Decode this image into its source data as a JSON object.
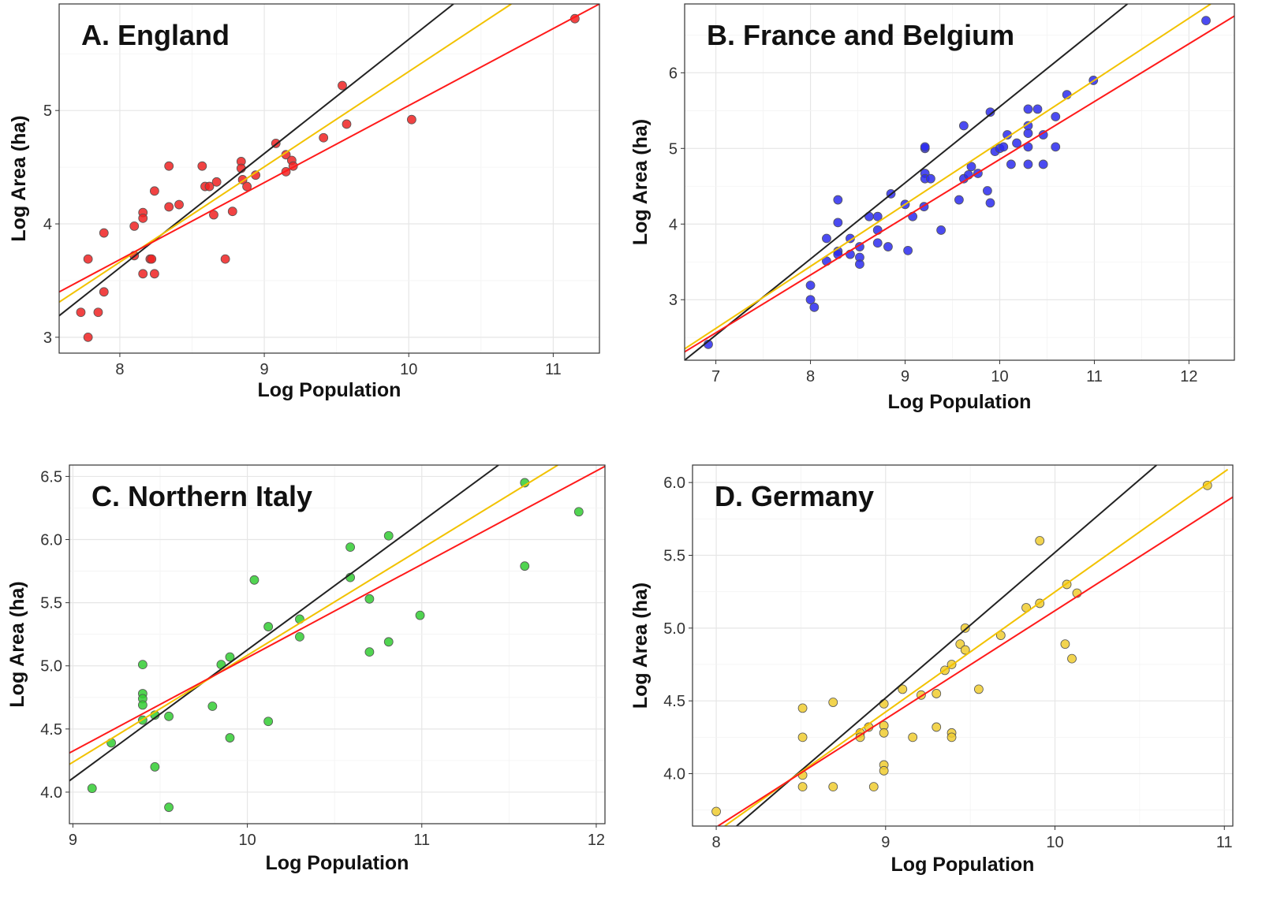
{
  "chart_data": [
    {
      "type": "scatter",
      "title": "A.  England",
      "xlabel": "Log Population",
      "ylabel": "Log Area (ha)",
      "xlim": [
        7.58,
        11.32
      ],
      "ylim": [
        2.86,
        5.94
      ],
      "xticks": [
        8,
        9,
        10,
        11
      ],
      "xtick_labels": [
        "8",
        "9",
        "10",
        "11"
      ],
      "yticks": [
        3,
        4,
        5
      ],
      "ytick_labels": [
        "3",
        "4",
        "5"
      ],
      "grid": true,
      "point_color": "#ee2222",
      "points": [
        [
          7.73,
          3.22
        ],
        [
          7.78,
          3.0
        ],
        [
          7.78,
          3.69
        ],
        [
          7.85,
          3.22
        ],
        [
          7.89,
          3.4
        ],
        [
          7.89,
          3.92
        ],
        [
          8.1,
          3.98
        ],
        [
          8.1,
          3.72
        ],
        [
          8.16,
          4.1
        ],
        [
          8.16,
          4.05
        ],
        [
          8.16,
          3.56
        ],
        [
          8.21,
          3.69
        ],
        [
          8.22,
          3.69
        ],
        [
          8.24,
          3.56
        ],
        [
          8.24,
          4.29
        ],
        [
          8.34,
          4.15
        ],
        [
          8.34,
          4.51
        ],
        [
          8.41,
          4.17
        ],
        [
          8.57,
          4.51
        ],
        [
          8.59,
          4.33
        ],
        [
          8.62,
          4.33
        ],
        [
          8.67,
          4.37
        ],
        [
          8.65,
          4.08
        ],
        [
          8.73,
          3.69
        ],
        [
          8.78,
          4.11
        ],
        [
          8.84,
          4.55
        ],
        [
          8.84,
          4.49
        ],
        [
          8.85,
          4.39
        ],
        [
          8.88,
          4.33
        ],
        [
          8.94,
          4.43
        ],
        [
          9.08,
          4.71
        ],
        [
          9.15,
          4.61
        ],
        [
          9.15,
          4.46
        ],
        [
          9.19,
          4.56
        ],
        [
          9.2,
          4.51
        ],
        [
          9.41,
          4.76
        ],
        [
          9.54,
          5.22
        ],
        [
          9.57,
          4.88
        ],
        [
          10.02,
          4.92
        ],
        [
          11.15,
          5.81
        ]
      ],
      "lines": [
        {
          "color": "#222222",
          "x": [
            7.58,
            10.31
          ],
          "y": [
            3.19,
            5.94
          ]
        },
        {
          "color": "#f2c200",
          "x": [
            7.58,
            10.71
          ],
          "y": [
            3.31,
            5.94
          ]
        },
        {
          "color": "#ff1a1a",
          "x": [
            7.58,
            11.32
          ],
          "y": [
            3.4,
            5.94
          ]
        }
      ]
    },
    {
      "type": "scatter",
      "title": "B.  France and Belgium",
      "xlabel": "Log Population",
      "ylabel": "Log Area (ha)",
      "xlim": [
        6.67,
        12.48
      ],
      "ylim": [
        2.2,
        6.91
      ],
      "xticks": [
        7,
        8,
        9,
        10,
        11,
        12
      ],
      "xtick_labels": [
        "7",
        "8",
        "9",
        "10",
        "11",
        "12"
      ],
      "yticks": [
        3,
        4,
        5,
        6
      ],
      "ytick_labels": [
        "3",
        "4",
        "5",
        "6"
      ],
      "grid": true,
      "point_color": "#2b2bee",
      "points": [
        [
          6.92,
          2.41
        ],
        [
          8.0,
          3.19
        ],
        [
          8.0,
          3.0
        ],
        [
          8.04,
          2.9
        ],
        [
          8.17,
          3.81
        ],
        [
          8.17,
          3.51
        ],
        [
          8.29,
          4.32
        ],
        [
          8.29,
          4.02
        ],
        [
          8.29,
          3.64
        ],
        [
          8.29,
          3.6
        ],
        [
          8.42,
          3.81
        ],
        [
          8.42,
          3.6
        ],
        [
          8.52,
          3.7
        ],
        [
          8.52,
          3.56
        ],
        [
          8.52,
          3.47
        ],
        [
          8.62,
          4.1
        ],
        [
          8.71,
          4.1
        ],
        [
          8.71,
          3.92
        ],
        [
          8.71,
          3.75
        ],
        [
          8.82,
          3.7
        ],
        [
          8.85,
          4.4
        ],
        [
          9.0,
          4.26
        ],
        [
          9.03,
          3.65
        ],
        [
          9.08,
          4.1
        ],
        [
          9.2,
          4.23
        ],
        [
          9.21,
          5.0
        ],
        [
          9.21,
          5.02
        ],
        [
          9.21,
          4.67
        ],
        [
          9.21,
          4.6
        ],
        [
          9.27,
          4.6
        ],
        [
          9.38,
          3.92
        ],
        [
          9.57,
          4.32
        ],
        [
          9.62,
          5.3
        ],
        [
          9.62,
          4.6
        ],
        [
          9.67,
          4.65
        ],
        [
          9.7,
          4.76
        ],
        [
          9.77,
          4.67
        ],
        [
          9.87,
          4.44
        ],
        [
          9.9,
          5.48
        ],
        [
          9.9,
          4.28
        ],
        [
          9.95,
          4.96
        ],
        [
          10.0,
          5.0
        ],
        [
          10.04,
          5.02
        ],
        [
          10.08,
          5.18
        ],
        [
          10.12,
          4.79
        ],
        [
          10.18,
          5.07
        ],
        [
          10.3,
          5.52
        ],
        [
          10.3,
          5.3
        ],
        [
          10.3,
          5.2
        ],
        [
          10.3,
          5.02
        ],
        [
          10.3,
          4.79
        ],
        [
          10.4,
          5.52
        ],
        [
          10.46,
          5.18
        ],
        [
          10.46,
          4.79
        ],
        [
          10.59,
          5.42
        ],
        [
          10.59,
          5.02
        ],
        [
          10.71,
          5.71
        ],
        [
          10.99,
          5.9
        ],
        [
          12.18,
          6.69
        ]
      ],
      "lines": [
        {
          "color": "#222222",
          "x": [
            6.67,
            11.35
          ],
          "y": [
            2.2,
            6.91
          ]
        },
        {
          "color": "#f2c200",
          "x": [
            6.67,
            12.23
          ],
          "y": [
            2.35,
            6.91
          ]
        },
        {
          "color": "#ff1a1a",
          "x": [
            6.67,
            12.48
          ],
          "y": [
            2.31,
            6.75
          ]
        }
      ]
    },
    {
      "type": "scatter",
      "title": "C.  Northern Italy",
      "xlabel": "Log Population",
      "ylabel": "Log Area (ha)",
      "xlim": [
        8.98,
        12.05
      ],
      "ylim": [
        3.75,
        6.59
      ],
      "xticks": [
        9,
        10,
        11,
        12
      ],
      "xtick_labels": [
        "9",
        "10",
        "11",
        "12"
      ],
      "yticks": [
        4.0,
        4.5,
        5.0,
        5.5,
        6.0,
        6.5
      ],
      "ytick_labels": [
        "4.0",
        "4.5",
        "5.0",
        "5.5",
        "6.0",
        "6.5"
      ],
      "grid": true,
      "point_color": "#33cc33",
      "points": [
        [
          9.11,
          4.03
        ],
        [
          9.22,
          4.39
        ],
        [
          9.4,
          5.01
        ],
        [
          9.4,
          4.78
        ],
        [
          9.4,
          4.74
        ],
        [
          9.4,
          4.69
        ],
        [
          9.4,
          4.57
        ],
        [
          9.47,
          4.61
        ],
        [
          9.47,
          4.2
        ],
        [
          9.55,
          4.6
        ],
        [
          9.55,
          3.88
        ],
        [
          9.8,
          4.68
        ],
        [
          9.85,
          5.01
        ],
        [
          9.9,
          5.07
        ],
        [
          9.9,
          4.43
        ],
        [
          10.04,
          5.68
        ],
        [
          10.12,
          5.31
        ],
        [
          10.12,
          4.56
        ],
        [
          10.3,
          5.37
        ],
        [
          10.3,
          5.23
        ],
        [
          10.59,
          5.94
        ],
        [
          10.59,
          5.7
        ],
        [
          10.7,
          5.53
        ],
        [
          10.7,
          5.11
        ],
        [
          10.81,
          6.03
        ],
        [
          10.81,
          5.19
        ],
        [
          10.99,
          5.4
        ],
        [
          11.59,
          6.45
        ],
        [
          11.59,
          5.79
        ],
        [
          11.9,
          6.22
        ]
      ],
      "lines": [
        {
          "color": "#222222",
          "x": [
            8.98,
            11.44
          ],
          "y": [
            4.09,
            6.59
          ]
        },
        {
          "color": "#f2c200",
          "x": [
            8.98,
            11.78
          ],
          "y": [
            4.22,
            6.59
          ]
        },
        {
          "color": "#ff1a1a",
          "x": [
            8.98,
            12.05
          ],
          "y": [
            4.31,
            6.58
          ]
        }
      ]
    },
    {
      "type": "scatter",
      "title": "D.  Germany",
      "xlabel": "Log Population",
      "ylabel": "Log Area (ha)",
      "xlim": [
        7.86,
        11.05
      ],
      "ylim": [
        3.64,
        6.12
      ],
      "xticks": [
        8,
        9,
        10,
        11
      ],
      "xtick_labels": [
        "8",
        "9",
        "10",
        "11"
      ],
      "yticks": [
        4.0,
        4.5,
        5.0,
        5.5,
        6.0
      ],
      "ytick_labels": [
        "4.0",
        "4.5",
        "5.0",
        "5.5",
        "6.0"
      ],
      "grid": true,
      "point_color": "#f0cc30",
      "points": [
        [
          8.0,
          3.74
        ],
        [
          8.51,
          4.45
        ],
        [
          8.51,
          4.25
        ],
        [
          8.51,
          3.99
        ],
        [
          8.51,
          3.91
        ],
        [
          8.69,
          4.49
        ],
        [
          8.69,
          3.91
        ],
        [
          8.85,
          4.28
        ],
        [
          8.85,
          4.25
        ],
        [
          8.9,
          4.32
        ],
        [
          8.93,
          3.91
        ],
        [
          8.99,
          4.48
        ],
        [
          8.99,
          4.33
        ],
        [
          8.99,
          4.28
        ],
        [
          8.99,
          4.06
        ],
        [
          8.99,
          4.02
        ],
        [
          9.1,
          4.58
        ],
        [
          9.16,
          4.25
        ],
        [
          9.21,
          4.54
        ],
        [
          9.3,
          4.55
        ],
        [
          9.3,
          4.32
        ],
        [
          9.35,
          4.71
        ],
        [
          9.39,
          4.75
        ],
        [
          9.39,
          4.28
        ],
        [
          9.39,
          4.25
        ],
        [
          9.44,
          4.89
        ],
        [
          9.47,
          5.0
        ],
        [
          9.47,
          4.85
        ],
        [
          9.55,
          4.58
        ],
        [
          9.68,
          4.95
        ],
        [
          9.83,
          5.14
        ],
        [
          9.91,
          5.6
        ],
        [
          9.91,
          5.17
        ],
        [
          10.07,
          5.3
        ],
        [
          10.06,
          4.89
        ],
        [
          10.1,
          4.79
        ],
        [
          10.13,
          5.24
        ],
        [
          10.9,
          5.98
        ]
      ],
      "lines": [
        {
          "color": "#222222",
          "x": [
            8.12,
            10.6
          ],
          "y": [
            3.64,
            6.12
          ]
        },
        {
          "color": "#f2c200",
          "x": [
            8.05,
            11.02
          ],
          "y": [
            3.64,
            6.09
          ]
        },
        {
          "color": "#ff1a1a",
          "x": [
            8.01,
            11.05
          ],
          "y": [
            3.64,
            5.9
          ]
        }
      ]
    }
  ]
}
